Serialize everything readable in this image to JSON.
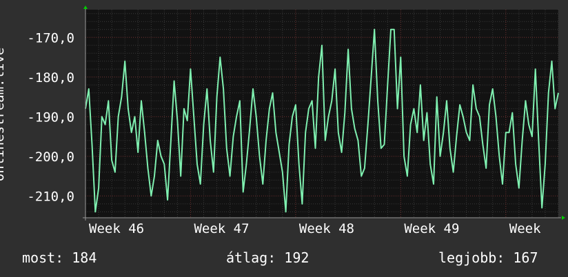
{
  "chart_data": {
    "type": "line",
    "ylabel": "onlinestream.live",
    "ylim": [
      -215.5,
      -163
    ],
    "yticks": [
      -170,
      -180,
      -190,
      -200,
      -210
    ],
    "ytick_labels": [
      "-170,0",
      "-180,0",
      "-190,0",
      "-200,0",
      "-210,0"
    ],
    "xlim": [
      0,
      288
    ],
    "xticks": [
      {
        "x": 0,
        "label": "Week 46"
      },
      {
        "x": 64,
        "label": "Week 47"
      },
      {
        "x": 128,
        "label": "Week 48"
      },
      {
        "x": 192,
        "label": "Week 49"
      },
      {
        "x": 256,
        "label": "Week"
      }
    ],
    "grid": true,
    "series": [
      {
        "color": "#7ff0b0",
        "x": [
          0,
          2,
          4,
          6,
          8,
          10,
          12,
          14,
          16,
          18,
          20,
          22,
          24,
          26,
          28,
          30,
          32,
          34,
          36,
          38,
          40,
          42,
          44,
          46,
          48,
          50,
          52,
          54,
          56,
          58,
          60,
          62,
          64,
          66,
          68,
          70,
          72,
          74,
          76,
          78,
          80,
          82,
          84,
          86,
          88,
          90,
          92,
          94,
          96,
          98,
          100,
          102,
          104,
          106,
          108,
          110,
          112,
          114,
          116,
          118,
          120,
          122,
          124,
          126,
          128,
          130,
          132,
          134,
          136,
          138,
          140,
          142,
          144,
          146,
          148,
          150,
          152,
          154,
          156,
          158,
          160,
          162,
          164,
          166,
          168,
          170,
          172,
          174,
          176,
          178,
          180,
          182,
          184,
          186,
          188,
          190,
          192,
          194,
          196,
          198,
          200,
          202,
          204,
          206,
          208,
          210,
          212,
          214,
          216,
          218,
          220,
          222,
          224,
          226,
          228,
          230,
          232,
          234,
          236,
          238,
          240,
          242,
          244,
          246,
          248,
          250,
          252,
          254,
          256,
          258,
          260,
          262,
          264,
          266,
          268,
          270,
          272,
          274,
          276,
          278,
          280,
          282,
          284,
          286,
          288
        ],
        "values": [
          -188,
          -183,
          -197,
          -214,
          -208,
          -190,
          -192,
          -186,
          -201,
          -204,
          -190,
          -185,
          -176,
          -188,
          -194,
          -190,
          -199,
          -186,
          -194,
          -203,
          -210,
          -205,
          -196,
          -200,
          -202,
          -211,
          -196,
          -181,
          -191,
          -205,
          -188,
          -191,
          -178,
          -190,
          -202,
          -207,
          -192,
          -183,
          -196,
          -204,
          -185,
          -175,
          -183,
          -198,
          -205,
          -195,
          -190,
          -186,
          -209,
          -202,
          -193,
          -183,
          -190,
          -200,
          -207,
          -196,
          -188,
          -184,
          -194,
          -199,
          -204,
          -214,
          -197,
          -190,
          -187,
          -202,
          -212,
          -194,
          -188,
          -186,
          -198,
          -180,
          -172,
          -196,
          -190,
          -186,
          -178,
          -194,
          -199,
          -189,
          -173,
          -188,
          -193,
          -196,
          -205,
          -203,
          -192,
          -180,
          -168,
          -186,
          -198,
          -197,
          -182,
          -168,
          -168,
          -188,
          -175,
          -200,
          -205,
          -192,
          -188,
          -194,
          -182,
          -196,
          -189,
          -202,
          -207,
          -185,
          -200,
          -194,
          -186,
          -198,
          -204,
          -195,
          -187,
          -190,
          -194,
          -196,
          -182,
          -188,
          -190,
          -197,
          -203,
          -187,
          -183,
          -190,
          -200,
          -207,
          -194,
          -194,
          -189,
          -202,
          -208,
          -196,
          -186,
          -192,
          -195,
          -178,
          -196,
          -213,
          -202,
          -184,
          -176,
          -188,
          -184
        ]
      }
    ]
  },
  "footer": {
    "current": "most: 184",
    "average": "átlag: 192",
    "best": "legjobb: 167"
  }
}
